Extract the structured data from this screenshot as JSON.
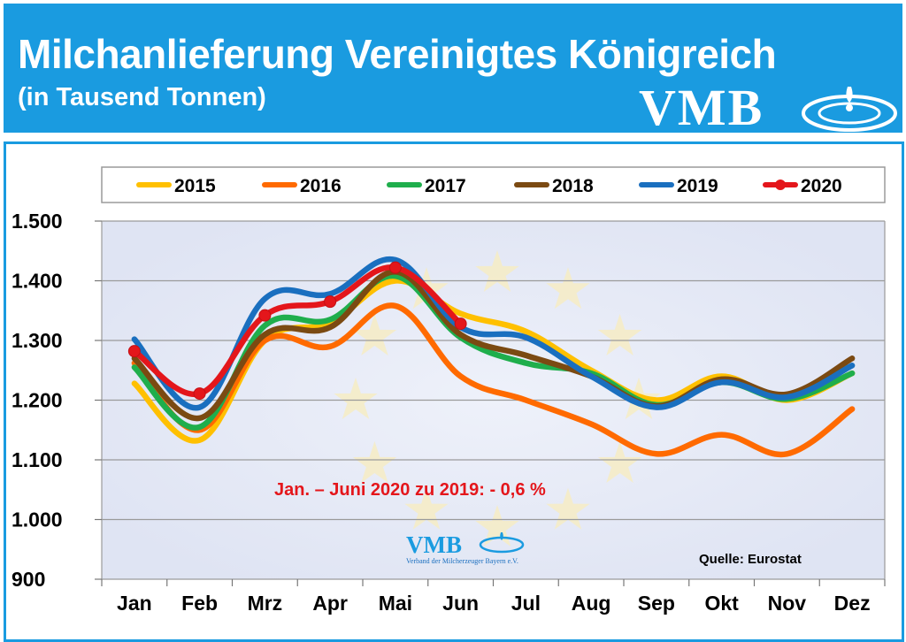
{
  "header": {
    "title": "Milchanlieferung Vereinigtes Königreich",
    "subtitle": "(in Tausend Tonnen)",
    "logo_text": "VMB"
  },
  "chart_data": {
    "type": "line",
    "title": "Milchanlieferung Vereinigtes Königreich",
    "subtitle": "(in Tausend Tonnen)",
    "categories": [
      "Jan",
      "Feb",
      "Mrz",
      "Apr",
      "Mai",
      "Jun",
      "Jul",
      "Aug",
      "Sep",
      "Okt",
      "Nov",
      "Dez"
    ],
    "ylim": [
      900,
      1500
    ],
    "yticks": [
      900,
      1000,
      1100,
      1200,
      1300,
      1400,
      1500
    ],
    "ytick_labels": [
      "900",
      "1.000",
      "1.100",
      "1.200",
      "1.300",
      "1.400",
      "1.500"
    ],
    "grid": true,
    "legend_position": "top",
    "series": [
      {
        "name": "2015",
        "color": "#ffc000",
        "markers": false,
        "values": [
          1228,
          1133,
          1300,
          1330,
          1400,
          1345,
          1315,
          1250,
          1200,
          1240,
          1200,
          1245
        ]
      },
      {
        "name": "2016",
        "color": "#ff6a00",
        "markers": false,
        "values": [
          1262,
          1150,
          1300,
          1290,
          1358,
          1240,
          1200,
          1160,
          1110,
          1142,
          1110,
          1185
        ]
      },
      {
        "name": "2017",
        "color": "#1fae4c",
        "markers": false,
        "values": [
          1255,
          1155,
          1325,
          1335,
          1408,
          1305,
          1262,
          1245,
          1192,
          1230,
          1202,
          1245
        ]
      },
      {
        "name": "2018",
        "color": "#7b4a12",
        "markers": false,
        "values": [
          1270,
          1170,
          1310,
          1322,
          1415,
          1310,
          1275,
          1240,
          1190,
          1235,
          1210,
          1270
        ]
      },
      {
        "name": "2019",
        "color": "#1a6fbf",
        "markers": false,
        "values": [
          1302,
          1188,
          1370,
          1378,
          1435,
          1322,
          1305,
          1240,
          1188,
          1230,
          1205,
          1258
        ]
      },
      {
        "name": "2020",
        "color": "#e4161b",
        "markers": true,
        "values": [
          1282,
          1211,
          1342,
          1365,
          1422,
          1328,
          null,
          null,
          null,
          null,
          null,
          null
        ]
      }
    ],
    "annotations": [
      "Jan. – Juni 2020 zu 2019: - 0,6 %"
    ],
    "source": "Quelle: Eurostat",
    "watermark": {
      "logo_text": "VMB",
      "org_name": "Verband der Milcherzeuger Bayern e.V."
    }
  }
}
